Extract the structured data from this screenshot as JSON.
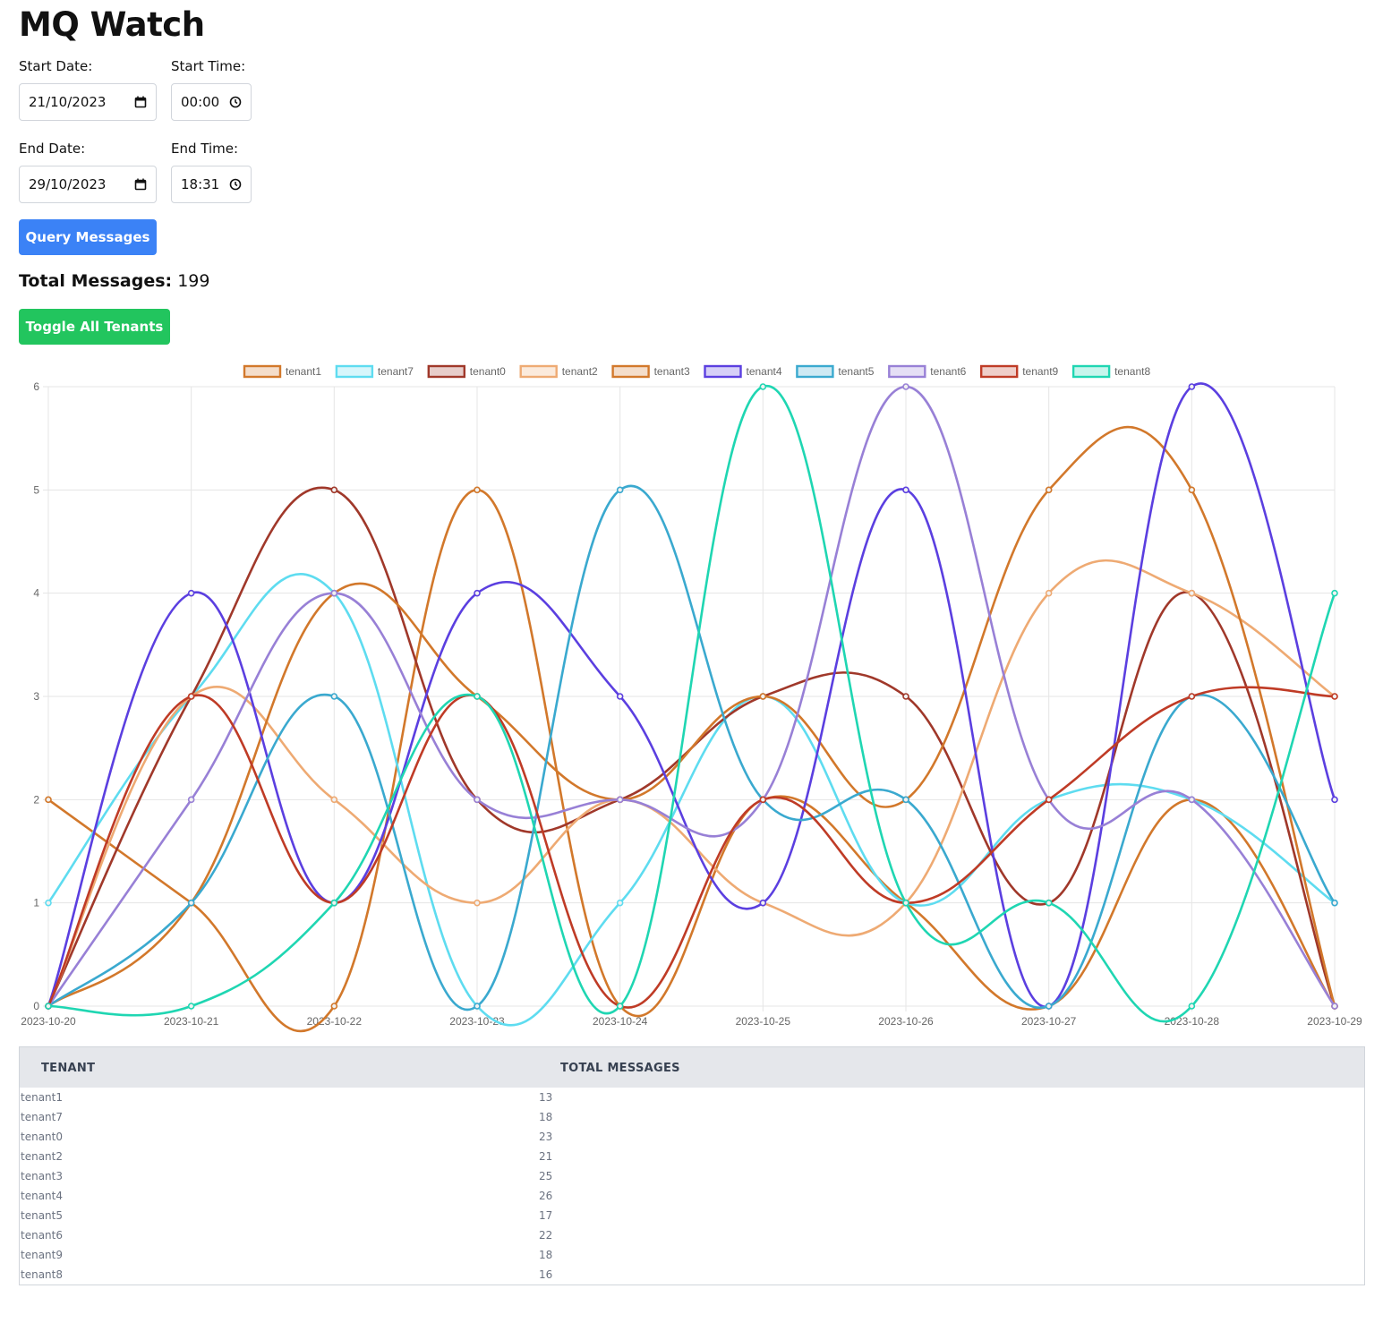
{
  "app": {
    "title": "MQ Watch"
  },
  "form": {
    "start_date_label": "Start Date:",
    "start_date_value": "21/10/2023",
    "start_time_label": "Start Time:",
    "start_time_value": "00:00",
    "end_date_label": "End Date:",
    "end_date_value": "29/10/2023",
    "end_time_label": "End Time:",
    "end_time_value": "18:31",
    "query_button": "Query Messages",
    "query_button_color": "#3b82f6"
  },
  "summary": {
    "total_label": "Total Messages:",
    "total_value": "199"
  },
  "toggle_button": {
    "label": "Toggle All Tenants",
    "color": "#22c55e"
  },
  "chart_data": {
    "type": "line",
    "x": [
      "2023-10-20",
      "2023-10-21",
      "2023-10-22",
      "2023-10-23",
      "2023-10-24",
      "2023-10-25",
      "2023-10-26",
      "2023-10-27",
      "2023-10-28",
      "2023-10-29"
    ],
    "ylim": [
      0,
      6
    ],
    "yticks": [
      "0",
      "1",
      "2",
      "3",
      "4",
      "5",
      "6"
    ],
    "grid": true,
    "legend_position": "top",
    "series": [
      {
        "name": "tenant1",
        "color": "#d2782b",
        "values": [
          2,
          1,
          0,
          5,
          0,
          2,
          1,
          0,
          2,
          0
        ]
      },
      {
        "name": "tenant7",
        "color": "#5edcf0",
        "values": [
          1,
          3,
          4,
          0,
          1,
          3,
          1,
          2,
          2,
          1
        ]
      },
      {
        "name": "tenant0",
        "color": "#a0382a",
        "values": [
          0,
          3,
          5,
          2,
          2,
          3,
          3,
          1,
          4,
          0
        ]
      },
      {
        "name": "tenant2",
        "color": "#eeaa73",
        "values": [
          0,
          3,
          2,
          1,
          2,
          1,
          1,
          4,
          4,
          3
        ]
      },
      {
        "name": "tenant3",
        "color": "#d2782b",
        "values": [
          0,
          1,
          4,
          3,
          2,
          3,
          2,
          5,
          5,
          0
        ]
      },
      {
        "name": "tenant4",
        "color": "#5b3fe0",
        "values": [
          0,
          4,
          1,
          4,
          3,
          1,
          5,
          0,
          6,
          2
        ]
      },
      {
        "name": "tenant5",
        "color": "#3aa9cf",
        "values": [
          0,
          1,
          3,
          0,
          5,
          2,
          2,
          0,
          3,
          1
        ]
      },
      {
        "name": "tenant6",
        "color": "#9880d6",
        "values": [
          0,
          2,
          4,
          2,
          2,
          2,
          6,
          2,
          2,
          0
        ]
      },
      {
        "name": "tenant9",
        "color": "#bf3b26",
        "values": [
          0,
          3,
          1,
          3,
          0,
          2,
          1,
          2,
          3,
          3
        ]
      },
      {
        "name": "tenant8",
        "color": "#1fd6b2",
        "values": [
          0,
          0,
          1,
          3,
          0,
          6,
          1,
          1,
          0,
          4
        ]
      }
    ]
  },
  "table": {
    "headers": [
      "TENANT",
      "TOTAL MESSAGES"
    ],
    "rows": [
      [
        "tenant1",
        "13"
      ],
      [
        "tenant7",
        "18"
      ],
      [
        "tenant0",
        "23"
      ],
      [
        "tenant2",
        "21"
      ],
      [
        "tenant3",
        "25"
      ],
      [
        "tenant4",
        "26"
      ],
      [
        "tenant5",
        "17"
      ],
      [
        "tenant6",
        "22"
      ],
      [
        "tenant9",
        "18"
      ],
      [
        "tenant8",
        "16"
      ]
    ]
  }
}
